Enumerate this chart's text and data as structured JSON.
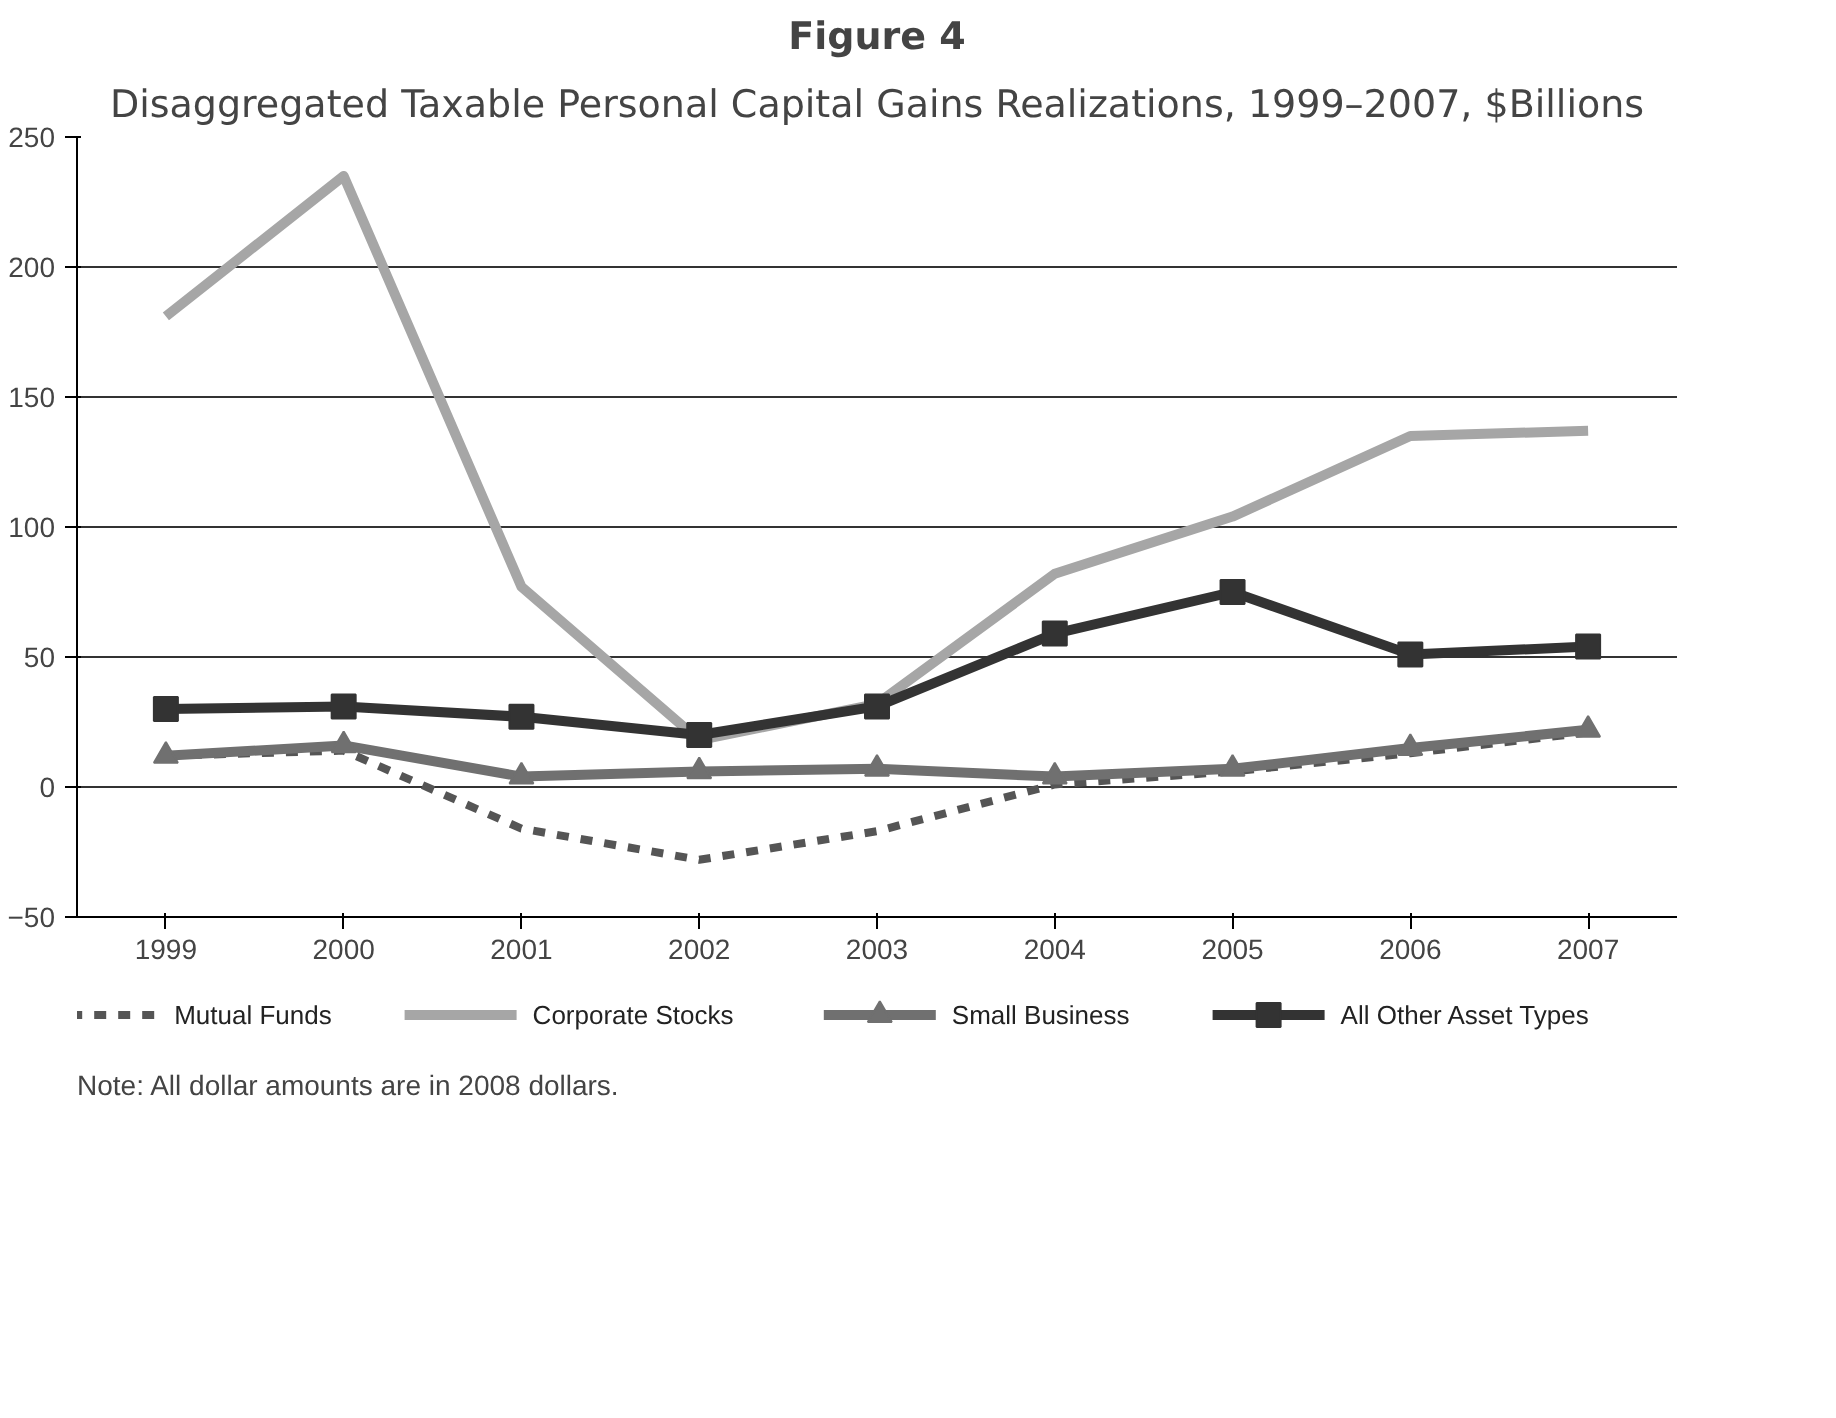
{
  "chart_data": {
    "type": "line",
    "title": "Figure 4",
    "subtitle": "Disaggregated Taxable Personal Capital Gains Realizations, 1999–2007, $Billions",
    "categories": [
      "1999",
      "2000",
      "2001",
      "2002",
      "2003",
      "2004",
      "2005",
      "2006",
      "2007"
    ],
    "series": [
      {
        "name": "Mutual Funds",
        "color": "#555555",
        "line_style": "dashed",
        "marker": "none",
        "values": [
          12,
          14,
          -16,
          -28,
          -17,
          1,
          6,
          13,
          21
        ]
      },
      {
        "name": "Corporate Stocks",
        "color": "#a6a6a6",
        "line_style": "solid",
        "marker": "none",
        "values": [
          181,
          235,
          77,
          18,
          32,
          82,
          104,
          135,
          137
        ]
      },
      {
        "name": "Small Business",
        "color": "#707070",
        "line_style": "solid",
        "marker": "triangle",
        "values": [
          12,
          16,
          4,
          6,
          7,
          4,
          7,
          15,
          22
        ]
      },
      {
        "name": "All Other Asset Types",
        "color": "#333333",
        "line_style": "solid",
        "marker": "square",
        "values": [
          30,
          31,
          27,
          20,
          31,
          59,
          75,
          51,
          54
        ]
      }
    ],
    "ylim": [
      -50,
      250
    ],
    "yticks": [
      -50,
      0,
      50,
      100,
      150,
      200,
      250
    ],
    "grid": "y",
    "legend": "bottom",
    "annotations": [
      "Note: All dollar amounts are in 2008 dollars."
    ]
  }
}
